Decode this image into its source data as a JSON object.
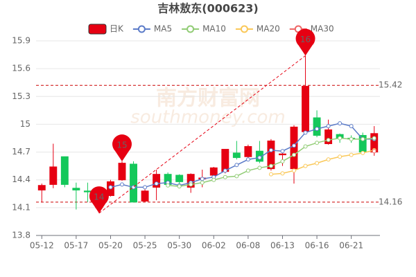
{
  "chart_data": {
    "type": "candlestick",
    "title": "吉林敖东(000623)",
    "watermark": "南方财富网",
    "watermark_sub": "southmoney.com",
    "categories": [
      "05-12",
      null,
      null,
      "05-17",
      null,
      null,
      "05-20",
      null,
      null,
      "05-25",
      null,
      null,
      "05-30",
      null,
      null,
      "06-02",
      null,
      null,
      "06-08",
      null,
      null,
      "06-13",
      null,
      null,
      "06-16",
      null,
      null,
      "06-21",
      null,
      null
    ],
    "series": [
      {
        "name": "日K",
        "type": "candlestick",
        "up_color": "#e60012",
        "down_color": "#14c85a",
        "open": [
          14.29,
          14.35,
          14.65,
          14.31,
          14.28,
          14.1,
          14.23,
          14.4,
          14.57,
          14.17,
          14.32,
          14.46,
          14.45,
          14.32,
          14.41,
          14.45,
          14.49,
          14.69,
          14.65,
          14.71,
          14.52,
          14.67,
          14.52,
          14.92,
          15.07,
          14.79,
          14.89,
          14.85,
          14.88,
          14.7
        ],
        "close": [
          14.34,
          14.54,
          14.35,
          14.29,
          14.27,
          14.21,
          14.38,
          14.58,
          14.16,
          14.28,
          14.46,
          14.35,
          14.38,
          14.46,
          14.42,
          14.53,
          14.73,
          14.64,
          14.76,
          14.6,
          14.82,
          14.68,
          14.97,
          15.41,
          14.88,
          14.94,
          14.85,
          14.84,
          14.7,
          14.9
        ],
        "high": [
          14.36,
          14.79,
          14.65,
          14.37,
          14.37,
          14.23,
          14.4,
          14.6,
          14.6,
          14.3,
          14.51,
          14.48,
          14.46,
          14.47,
          14.51,
          14.54,
          14.73,
          14.82,
          14.78,
          14.82,
          14.84,
          14.72,
          14.99,
          15.74,
          15.15,
          15.05,
          14.9,
          14.88,
          14.91,
          14.98
        ],
        "low": [
          14.16,
          14.31,
          14.32,
          14.08,
          14.16,
          14.04,
          14.22,
          14.39,
          14.16,
          14.16,
          14.18,
          14.32,
          14.32,
          14.26,
          14.32,
          14.38,
          14.47,
          14.62,
          14.63,
          14.58,
          14.5,
          14.55,
          14.36,
          14.91,
          14.86,
          14.78,
          14.8,
          14.8,
          14.68,
          14.66
        ]
      },
      {
        "name": "MA5",
        "color": "#5b7bc8",
        "values": [
          null,
          null,
          null,
          null,
          null,
          null,
          14.32,
          14.35,
          14.32,
          14.32,
          14.36,
          14.37,
          14.34,
          14.37,
          14.41,
          14.43,
          14.5,
          14.56,
          14.62,
          14.64,
          14.72,
          14.71,
          14.77,
          14.91,
          14.95,
          14.98,
          15.01,
          14.98,
          14.84,
          14.84
        ]
      },
      {
        "name": "MA10",
        "color": "#91cc75",
        "values": [
          null,
          null,
          null,
          null,
          null,
          null,
          null,
          null,
          null,
          null,
          null,
          14.34,
          14.33,
          14.35,
          14.37,
          14.4,
          14.43,
          14.44,
          14.5,
          14.53,
          14.55,
          14.6,
          14.67,
          14.76,
          14.8,
          14.83,
          14.85,
          14.84,
          14.84,
          14.85
        ]
      },
      {
        "name": "MA20",
        "color": "#fac858",
        "values": [
          null,
          null,
          null,
          null,
          null,
          null,
          null,
          null,
          null,
          null,
          null,
          null,
          null,
          null,
          null,
          null,
          null,
          null,
          null,
          null,
          14.46,
          14.47,
          14.5,
          14.55,
          14.58,
          14.62,
          14.65,
          14.67,
          14.69,
          14.72
        ]
      },
      {
        "name": "MA30",
        "color": "#ee6666",
        "values": [
          null,
          null,
          null,
          null,
          null,
          null,
          null,
          null,
          null,
          null,
          null,
          null,
          null,
          null,
          null,
          null,
          null,
          null,
          null,
          null,
          null,
          null,
          null,
          null,
          null,
          null,
          null,
          null,
          null,
          14.71
        ]
      }
    ],
    "hlines": [
      15.42,
      14.16
    ],
    "pins": [
      {
        "label": "14",
        "index": 5,
        "at": "low"
      },
      {
        "label": "15",
        "index": 7,
        "at": "high"
      },
      {
        "label": "16",
        "index": 23,
        "at": "high"
      }
    ],
    "ylim": [
      13.8,
      15.9
    ],
    "yticks": [
      13.8,
      14.1,
      14.4,
      14.7,
      15,
      15.3,
      15.6,
      15.9
    ],
    "grid": true
  }
}
